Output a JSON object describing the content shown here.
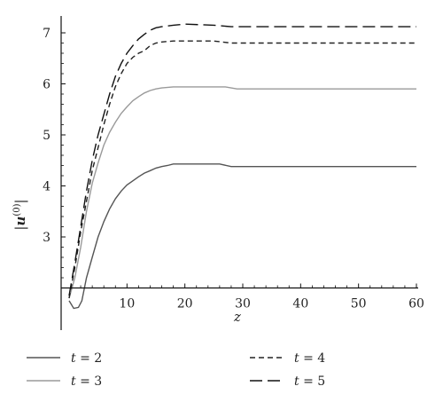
{
  "chart_data": {
    "type": "line",
    "xlabel": "z",
    "ylabel": "|u(0)|",
    "ylabel_parts": {
      "pre": "|",
      "var": "u",
      "sup": "(0)",
      "post": "|"
    },
    "xlim": [
      -1,
      60
    ],
    "ylim": [
      2.0,
      7.3
    ],
    "x_axis_at_y": 2.0,
    "x_ticks": [
      10,
      20,
      30,
      40,
      50,
      60
    ],
    "y_ticks": [
      3,
      4,
      5,
      6,
      7
    ],
    "grid": false,
    "legend_position": "bottom",
    "series": [
      {
        "name": "t = 2",
        "legend_var": "t",
        "legend_value": "= 2",
        "color": "#555555",
        "dash": "",
        "points": [
          [
            0,
            1.75
          ],
          [
            0.8,
            1.6
          ],
          [
            1.6,
            1.62
          ],
          [
            2.2,
            1.75
          ],
          [
            3,
            2.2
          ],
          [
            4,
            2.6
          ],
          [
            5,
            3.0
          ],
          [
            6,
            3.3
          ],
          [
            7,
            3.55
          ],
          [
            8,
            3.75
          ],
          [
            9,
            3.9
          ],
          [
            10,
            4.02
          ],
          [
            11,
            4.1
          ],
          [
            12,
            4.18
          ],
          [
            13,
            4.25
          ],
          [
            14,
            4.3
          ],
          [
            15,
            4.35
          ],
          [
            16,
            4.38
          ],
          [
            17,
            4.4
          ],
          [
            18,
            4.43
          ],
          [
            20,
            4.43
          ],
          [
            26,
            4.43
          ],
          [
            28,
            4.38
          ],
          [
            60,
            4.38
          ]
        ]
      },
      {
        "name": "t = 3",
        "legend_var": "t",
        "legend_value": "= 3",
        "color": "#9a9a9a",
        "dash": "",
        "points": [
          [
            0,
            1.8
          ],
          [
            1,
            2.2
          ],
          [
            2,
            2.8
          ],
          [
            3,
            3.5
          ],
          [
            4,
            4.05
          ],
          [
            5,
            4.45
          ],
          [
            6,
            4.8
          ],
          [
            7,
            5.05
          ],
          [
            8,
            5.25
          ],
          [
            9,
            5.42
          ],
          [
            10,
            5.55
          ],
          [
            11,
            5.67
          ],
          [
            12,
            5.75
          ],
          [
            13,
            5.82
          ],
          [
            14,
            5.87
          ],
          [
            15,
            5.9
          ],
          [
            16,
            5.92
          ],
          [
            18,
            5.94
          ],
          [
            27,
            5.94
          ],
          [
            29,
            5.9
          ],
          [
            60,
            5.9
          ]
        ]
      },
      {
        "name": "t = 4",
        "legend_var": "t",
        "legend_value": "= 4",
        "color": "#222222",
        "dash": "6 4",
        "points": [
          [
            0,
            1.8
          ],
          [
            1,
            2.4
          ],
          [
            2,
            3.1
          ],
          [
            3,
            3.7
          ],
          [
            4,
            4.3
          ],
          [
            5,
            4.75
          ],
          [
            6,
            5.2
          ],
          [
            7,
            5.6
          ],
          [
            8,
            5.95
          ],
          [
            9,
            6.2
          ],
          [
            10,
            6.4
          ],
          [
            11,
            6.52
          ],
          [
            12,
            6.6
          ],
          [
            13,
            6.65
          ],
          [
            14,
            6.75
          ],
          [
            15,
            6.8
          ],
          [
            16,
            6.82
          ],
          [
            18,
            6.84
          ],
          [
            25,
            6.84
          ],
          [
            28,
            6.8
          ],
          [
            60,
            6.8
          ]
        ]
      },
      {
        "name": "t = 5",
        "legend_var": "t",
        "legend_value": "= 5",
        "color": "#111111",
        "dash": "14 6",
        "points": [
          [
            0,
            1.85
          ],
          [
            1,
            2.5
          ],
          [
            2,
            3.2
          ],
          [
            3,
            3.9
          ],
          [
            4,
            4.5
          ],
          [
            5,
            5.0
          ],
          [
            6,
            5.4
          ],
          [
            7,
            5.8
          ],
          [
            8,
            6.15
          ],
          [
            9,
            6.4
          ],
          [
            10,
            6.6
          ],
          [
            11,
            6.75
          ],
          [
            12,
            6.88
          ],
          [
            13,
            6.97
          ],
          [
            14,
            7.05
          ],
          [
            15,
            7.1
          ],
          [
            16,
            7.12
          ],
          [
            18,
            7.15
          ],
          [
            20,
            7.17
          ],
          [
            25,
            7.15
          ],
          [
            28,
            7.12
          ],
          [
            60,
            7.12
          ]
        ]
      }
    ]
  }
}
